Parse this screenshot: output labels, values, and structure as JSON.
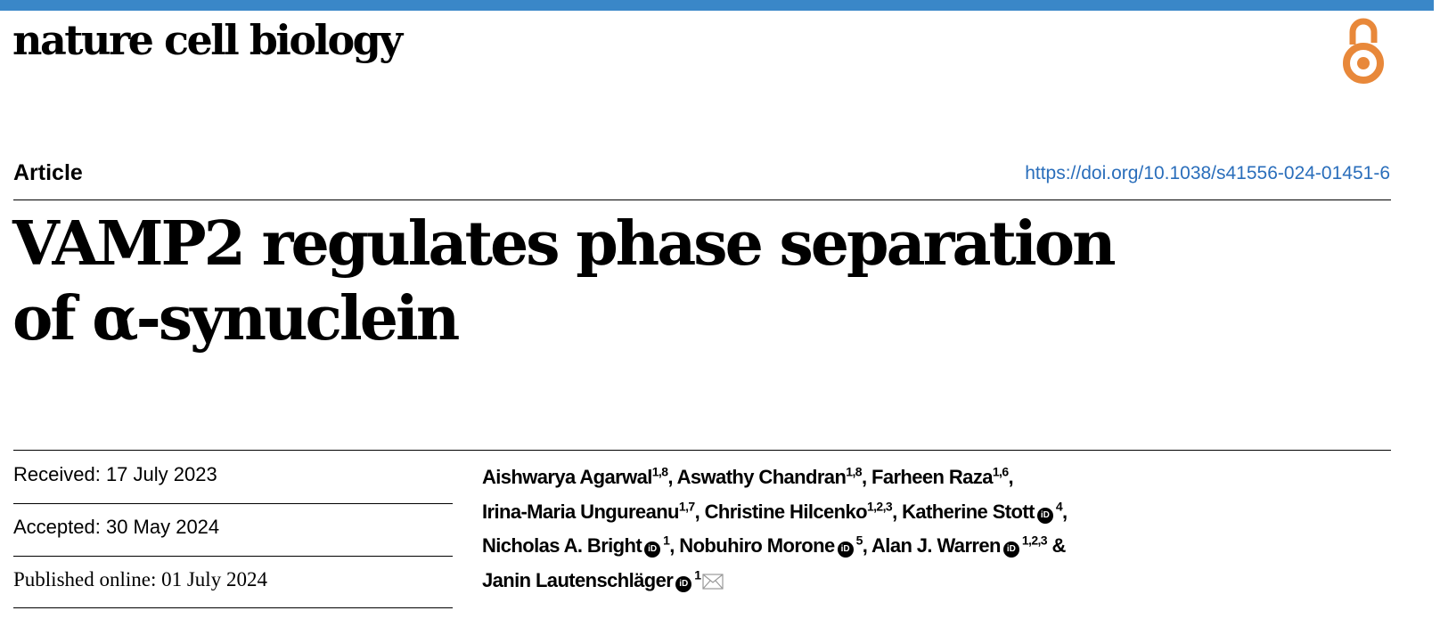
{
  "journal": {
    "name": "nature cell biology",
    "accent_color": "#3a87c8",
    "open_access_icon": "open-access-lock-icon",
    "open_access_color": "#e8883a"
  },
  "article": {
    "type": "Article",
    "doi": "https://doi.org/10.1038/s41556-024-01451-6",
    "title_line1": "VAMP2 regulates phase separation",
    "title_line2": "of α-synuclein"
  },
  "dates": {
    "received": "Received: 17 July 2023",
    "accepted": "Accepted: 30 May 2024",
    "published": "Published online: 01 July 2024"
  },
  "authors": [
    {
      "name": "Aishwarya Agarwal",
      "aff": "1,8",
      "orcid": false,
      "sep": ", "
    },
    {
      "name": "Aswathy Chandran",
      "aff": "1,8",
      "orcid": false,
      "sep": ", "
    },
    {
      "name": "Farheen Raza",
      "aff": "1,6",
      "orcid": false,
      "sep": ","
    },
    {
      "name": "Irina-Maria Ungureanu",
      "aff": "1,7",
      "orcid": false,
      "sep": ", "
    },
    {
      "name": "Christine Hilcenko",
      "aff": "1,2,3",
      "orcid": false,
      "sep": ", "
    },
    {
      "name": "Katherine Stott",
      "aff": "4",
      "orcid": true,
      "sep": ","
    },
    {
      "name": "Nicholas A. Bright",
      "aff": "1",
      "orcid": true,
      "sep": ", "
    },
    {
      "name": "Nobuhiro Morone",
      "aff": "5",
      "orcid": true,
      "sep": ", "
    },
    {
      "name": "Alan J. Warren",
      "aff": "1,2,3",
      "orcid": true,
      "sep": " &"
    },
    {
      "name": "Janin Lautenschläger",
      "aff": "1",
      "orcid": true,
      "sep": "",
      "corresponding": true
    }
  ],
  "icons": {
    "orcid": "orcid-icon",
    "email": "email-icon"
  },
  "orcid_glyph": "iD"
}
